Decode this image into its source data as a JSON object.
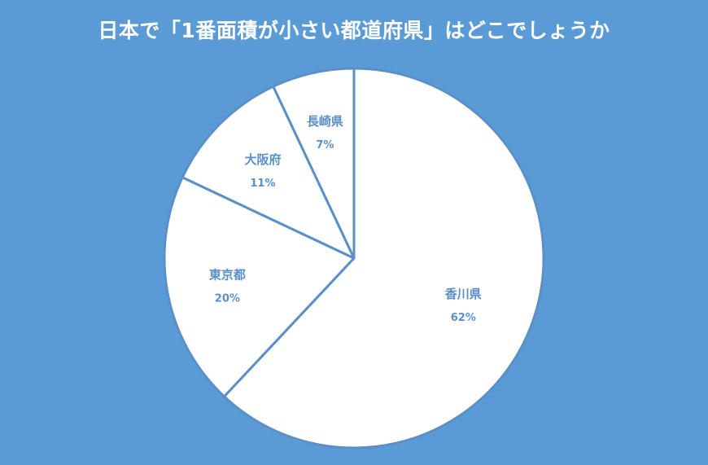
{
  "title": "日本で「1番面積が小さい都道府県」はどこでしょうか",
  "colors": {
    "background": "#5b9bd5",
    "slice_fill": "#ffffff",
    "slice_border": "#5b8fc7",
    "label": "#5b8fc7"
  },
  "chart_data": {
    "type": "pie",
    "title": "日本で「1番面積が小さい都道府県」はどこでしょうか",
    "categories": [
      "香川県",
      "東京都",
      "大阪府",
      "長崎県"
    ],
    "values": [
      62,
      20,
      11,
      7
    ],
    "labels": [
      "62%",
      "20%",
      "11%",
      "7%"
    ],
    "start_angle": "12 o'clock",
    "direction": "clockwise",
    "legend": "none (data labels on slices)"
  }
}
